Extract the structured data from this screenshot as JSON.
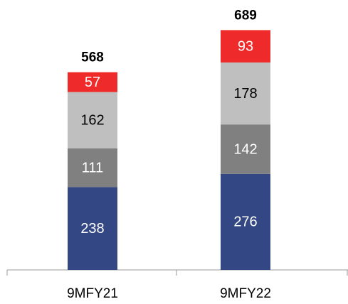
{
  "chart_data": {
    "type": "stacked_bar",
    "categories": [
      "9MFY21",
      "9MFY22"
    ],
    "series": [
      {
        "color": "#334784",
        "label_color": "#ffffff",
        "values": [
          238,
          276
        ]
      },
      {
        "color": "#808080",
        "label_color": "#ffffff",
        "values": [
          111,
          142
        ]
      },
      {
        "color": "#bfbfbf",
        "label_color": "#000000",
        "values": [
          162,
          178
        ]
      },
      {
        "color": "#ee2a2a",
        "label_color": "#ffffff",
        "values": [
          57,
          93
        ]
      }
    ],
    "totals": [
      568,
      689
    ]
  }
}
